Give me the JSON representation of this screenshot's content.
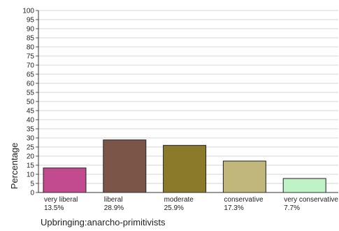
{
  "chart_data": {
    "type": "bar",
    "title": "",
    "xlabel": "Upbringing:anarcho-primitivists",
    "ylabel": "Percentage",
    "ylim": [
      0,
      100
    ],
    "yticks": [
      0,
      5,
      10,
      15,
      20,
      25,
      30,
      35,
      40,
      45,
      50,
      55,
      60,
      65,
      70,
      75,
      80,
      85,
      90,
      95,
      100
    ],
    "grid": true,
    "categories": [
      "very liberal",
      "liberal",
      "moderate",
      "conservative",
      "very conservative"
    ],
    "value_labels": [
      "13.5%",
      "28.9%",
      "25.9%",
      "17.3%",
      "7.7%"
    ],
    "values": [
      13.5,
      28.9,
      25.9,
      17.3,
      7.7
    ],
    "colors": [
      "#c24a8f",
      "#7a5548",
      "#8b7a2a",
      "#c2b77a",
      "#bff2c4"
    ]
  }
}
